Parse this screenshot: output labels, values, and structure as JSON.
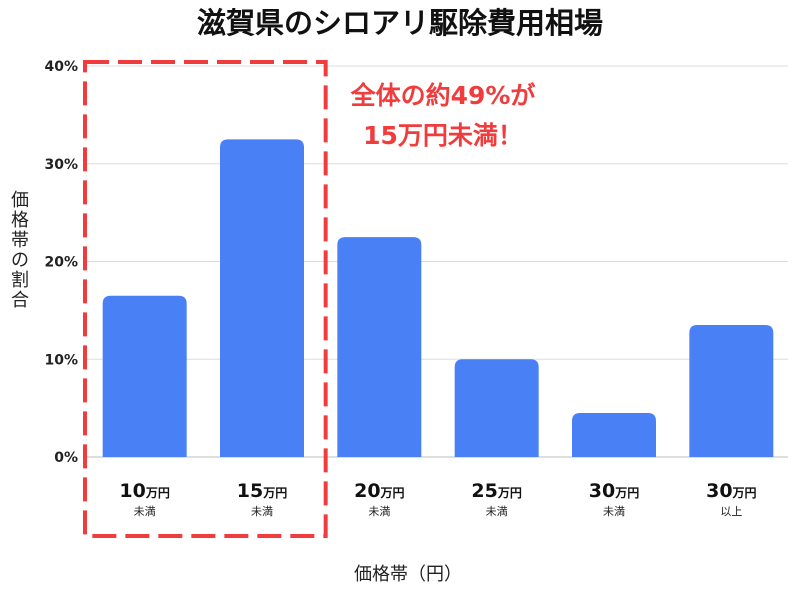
{
  "chart_data": {
    "type": "bar",
    "title": "滋賀県のシロアリ駆除費用相場",
    "ylabel": "価格帯の割合",
    "xlabel": "価格帯（円）",
    "ylim": [
      0,
      40
    ],
    "yticks": [
      "0%",
      "10%",
      "20%",
      "30%",
      "40%"
    ],
    "grid": true,
    "categories": [
      {
        "main": "10",
        "unit": "万円",
        "sub": "未満"
      },
      {
        "main": "15",
        "unit": "万円",
        "sub": "未満"
      },
      {
        "main": "20",
        "unit": "万円",
        "sub": "未満"
      },
      {
        "main": "25",
        "unit": "万円",
        "sub": "未満"
      },
      {
        "main": "30",
        "unit": "万円",
        "sub": "未満"
      },
      {
        "main": "30",
        "unit": "万円",
        "sub": "以上"
      }
    ],
    "values": [
      16.5,
      32.5,
      22.5,
      10,
      4.5,
      13.5
    ],
    "bar_color": "#4A80F5",
    "highlight": {
      "categories": [
        0,
        1
      ],
      "color": "#F03C3C",
      "lines": [
        "全体の約49%が",
        "15万円未満！"
      ]
    }
  }
}
